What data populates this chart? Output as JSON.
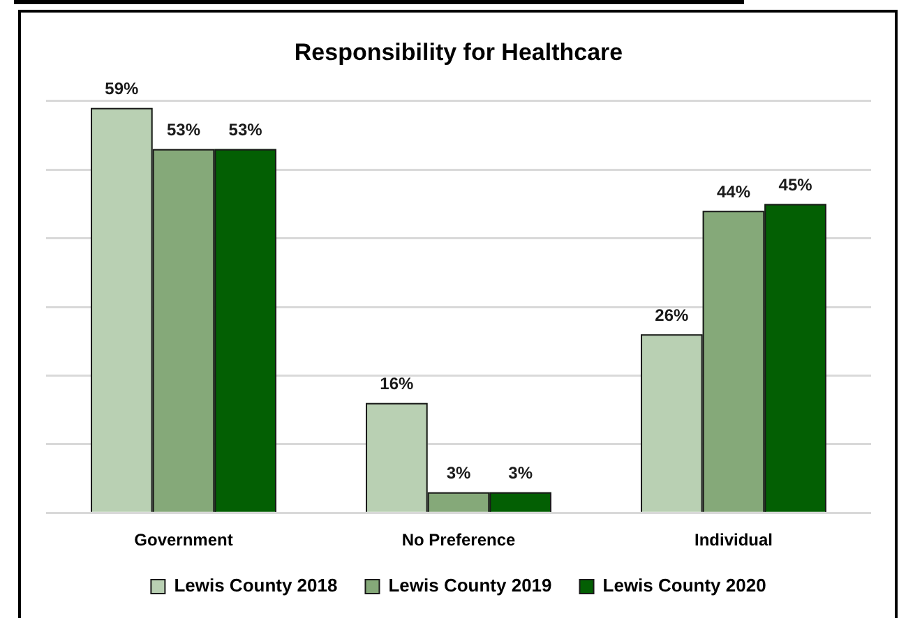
{
  "chart_data": {
    "type": "bar",
    "title": "Responsibility for Healthcare",
    "categories": [
      "Government",
      "No Preference",
      "Individual"
    ],
    "series": [
      {
        "name": "Lewis County 2018",
        "color": "#b9d0b3",
        "values": [
          59,
          16,
          26
        ],
        "value_labels": [
          "59%",
          "16%",
          "26%"
        ]
      },
      {
        "name": "Lewis County 2019",
        "color": "#85a979",
        "values": [
          53,
          3,
          44
        ],
        "value_labels": [
          "53%",
          "3%",
          "44%"
        ]
      },
      {
        "name": "Lewis County 2020",
        "color": "#035f03",
        "values": [
          53,
          3,
          45
        ],
        "value_labels": [
          "53%",
          "3%",
          "45%"
        ]
      }
    ],
    "ylim": [
      0,
      60
    ],
    "yticks": [
      {
        "value": 0,
        "label": null
      },
      {
        "value": 10,
        "label": null
      },
      {
        "value": 20,
        "label": null
      },
      {
        "value": 30,
        "label": null
      },
      {
        "value": 40,
        "label": null
      },
      {
        "value": 50,
        "label": null
      },
      {
        "value": 60,
        "label": null
      }
    ],
    "grid": "y",
    "legend": "bottom",
    "tick_labels": "x"
  }
}
